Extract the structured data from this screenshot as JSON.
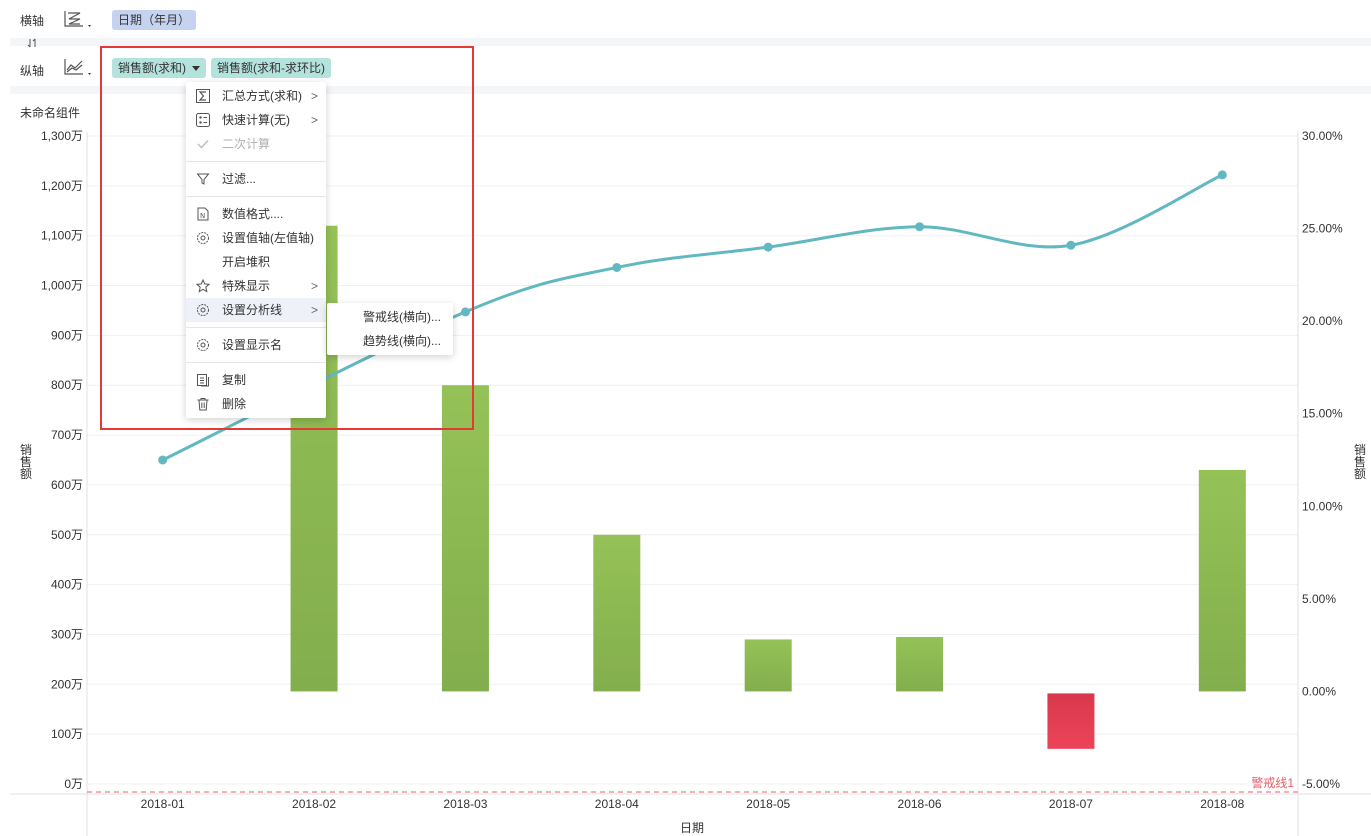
{
  "horizontal_axis": {
    "label": "横轴",
    "field": "日期（年月）",
    "chart_icon": "axis-chart-type-icon"
  },
  "vertical_axis": {
    "label": "纵轴",
    "fields": [
      "销售额(求和)",
      "销售额(求和-求环比)"
    ],
    "chart_icon": "line-chart-type-icon"
  },
  "swap_icon": "swap-axes-icon",
  "component_title": "未命名组件",
  "context_menu": {
    "items": [
      {
        "label": "汇总方式(求和)",
        "icon": "sigma-icon",
        "submenu": true
      },
      {
        "label": "快速计算(无)",
        "icon": "quick-calc-icon",
        "submenu": true
      },
      {
        "label": "二次计算",
        "icon": "check-icon",
        "disabled": true
      },
      {
        "label": "过滤...",
        "icon": "filter-icon"
      },
      {
        "label": "数值格式....",
        "icon": "number-format-icon"
      },
      {
        "label": "设置值轴(左值轴)",
        "icon": "gear-icon"
      },
      {
        "label": "开启堆积",
        "icon": ""
      },
      {
        "label": "特殊显示",
        "icon": "star-icon",
        "submenu": true
      },
      {
        "label": "设置分析线",
        "icon": "gear-icon",
        "submenu": true,
        "active": true
      },
      {
        "label": "设置显示名",
        "icon": "gear-icon"
      },
      {
        "label": "复制",
        "icon": "copy-icon"
      },
      {
        "label": "删除",
        "icon": "trash-icon"
      }
    ]
  },
  "submenu": {
    "items": [
      "警戒线(横向)...",
      "趋势线(横向)..."
    ]
  },
  "colors": {
    "bar_green": "#8bbb50",
    "bar_red": "#e23d52",
    "line": "#62b8c1",
    "warning": "#e4606b",
    "highlight": "#e53935"
  },
  "chart_data": {
    "type": "bar+line",
    "categories": [
      "2018-01",
      "2018-02",
      "2018-03",
      "2018-04",
      "2018-05",
      "2018-06",
      "2018-07",
      "2018-08"
    ],
    "xlabel": "日期",
    "ylabel_left": "销售额",
    "ylabel_right": "销售额",
    "y_left_ticks": [
      "0万",
      "100万",
      "200万",
      "300万",
      "400万",
      "500万",
      "600万",
      "700万",
      "800万",
      "900万",
      "1,000万",
      "1,100万",
      "1,200万",
      "1,300万"
    ],
    "y_left_range": [
      0,
      1300
    ],
    "y_right_ticks": [
      "-5.00%",
      "0.00%",
      "5.00%",
      "10.00%",
      "15.00%",
      "20.00%",
      "25.00%",
      "30.00%"
    ],
    "y_right_range": [
      -5,
      30
    ],
    "series": [
      {
        "type": "bar",
        "unit": "万",
        "values": [
          null,
          1120,
          800,
          500,
          290,
          295,
          null,
          630
        ]
      },
      {
        "type": "line",
        "unit": "%",
        "values": [
          12.5,
          null,
          20.5,
          22.9,
          24.0,
          25.1,
          24.1,
          27.9
        ]
      }
    ],
    "bar_baseline_note": "bars drawn from the 0.00% level; 2018-07 bar is negative (red) down to about -3%",
    "bar_07_negative_depth_pct": -3.1,
    "warning_line": {
      "label": "警戒线1",
      "value_pct": -5
    },
    "grid": true,
    "legend": "none"
  }
}
